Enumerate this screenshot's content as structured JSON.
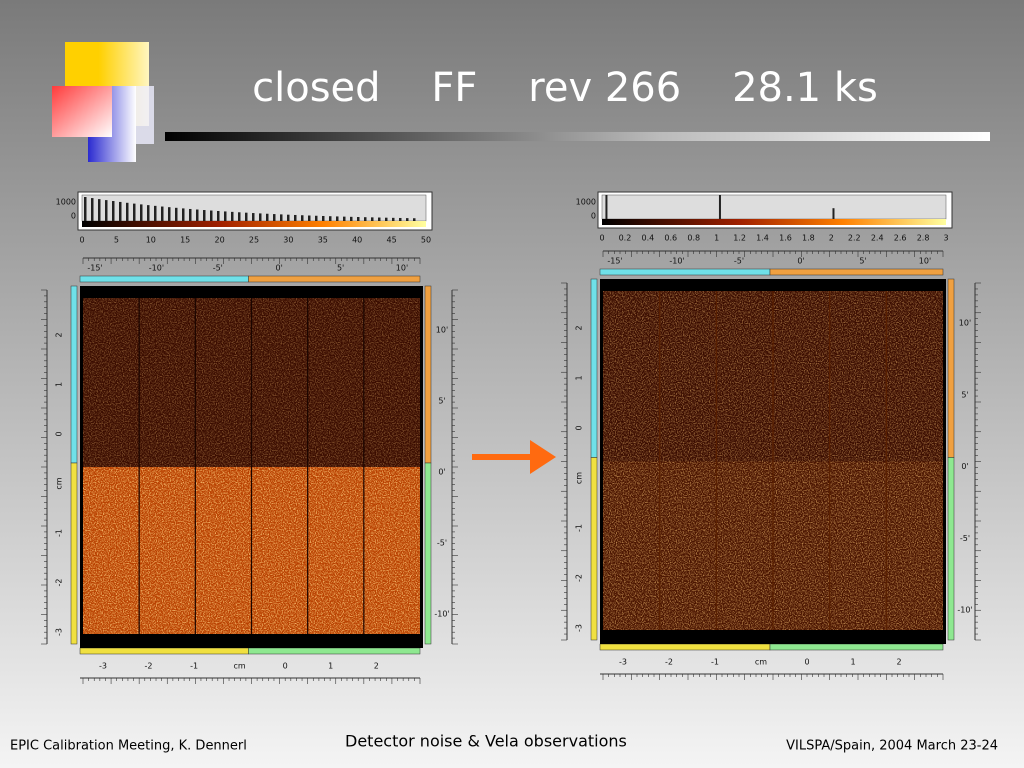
{
  "header": {
    "title": "closed    FF    rev 266    28.1 ks"
  },
  "panels": [
    {
      "histogram_y": [
        "1000",
        "0"
      ],
      "histogram_ticks": [
        "0",
        "5",
        "10",
        "15",
        "20",
        "25",
        "30",
        "35",
        "40",
        "45",
        "50"
      ],
      "top_axis": [
        "-15'",
        "-10'",
        "-5'",
        "0'",
        "5'",
        "10'"
      ],
      "left_axis": [
        "2",
        "1",
        "0",
        "cm",
        "-1",
        "-2",
        "-3"
      ],
      "right_axis": [
        "10'",
        "5'",
        "0'",
        "-5'",
        "-10'"
      ],
      "bottom_axis": [
        "-3",
        "-2",
        "-1",
        "cm",
        "0",
        "1",
        "2"
      ]
    },
    {
      "histogram_y": [
        "1000",
        "0"
      ],
      "histogram_ticks": [
        "0",
        "0.2",
        "0.4",
        "0.6",
        "0.8",
        "1",
        "1.2",
        "1.4",
        "1.6",
        "1.8",
        "2",
        "2.2",
        "2.4",
        "2.6",
        "2.8",
        "3"
      ],
      "top_axis": [
        "-15'",
        "-10'",
        "-5'",
        "0'",
        "5'",
        "10'"
      ],
      "left_axis": [
        "2",
        "1",
        "0",
        "cm",
        "-1",
        "-2",
        "-3"
      ],
      "right_axis": [
        "10'",
        "5'",
        "0'",
        "-5'",
        "-10'"
      ],
      "bottom_axis": [
        "-3",
        "-2",
        "-1",
        "cm",
        "0",
        "1",
        "2"
      ]
    }
  ],
  "footer": {
    "left": "EPIC Calibration Meeting, K. Dennerl",
    "center": "Detector noise & Vela observations",
    "right": "VILSPA/Spain, 2004 March 23-24"
  }
}
